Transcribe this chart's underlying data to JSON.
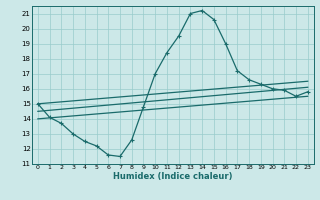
{
  "bg_color": "#cce8e8",
  "grid_color": "#99cccc",
  "line_color": "#1a6b6b",
  "xlabel": "Humidex (Indice chaleur)",
  "xlim": [
    -0.5,
    23.5
  ],
  "ylim": [
    11,
    21.5
  ],
  "yticks": [
    11,
    12,
    13,
    14,
    15,
    16,
    17,
    18,
    19,
    20,
    21
  ],
  "xticks": [
    0,
    1,
    2,
    3,
    4,
    5,
    6,
    7,
    8,
    9,
    10,
    11,
    12,
    13,
    14,
    15,
    16,
    17,
    18,
    19,
    20,
    21,
    22,
    23
  ],
  "curve1_x": [
    0,
    1,
    2,
    3,
    4,
    5,
    6,
    7,
    8,
    9,
    10,
    11,
    12,
    13,
    14,
    15,
    16,
    17,
    18,
    19,
    20,
    21,
    22,
    23
  ],
  "curve1_y": [
    15.0,
    14.1,
    13.7,
    13.0,
    12.5,
    12.2,
    11.6,
    11.5,
    12.6,
    14.8,
    17.0,
    18.4,
    19.5,
    21.0,
    21.2,
    20.6,
    19.0,
    17.2,
    16.6,
    16.3,
    16.0,
    15.9,
    15.5,
    15.8
  ],
  "line2_x": [
    0,
    23
  ],
  "line2_y": [
    15.0,
    16.5
  ],
  "line3_x": [
    0,
    23
  ],
  "line3_y": [
    14.5,
    16.1
  ],
  "line4_x": [
    0,
    23
  ],
  "line4_y": [
    14.0,
    15.5
  ]
}
